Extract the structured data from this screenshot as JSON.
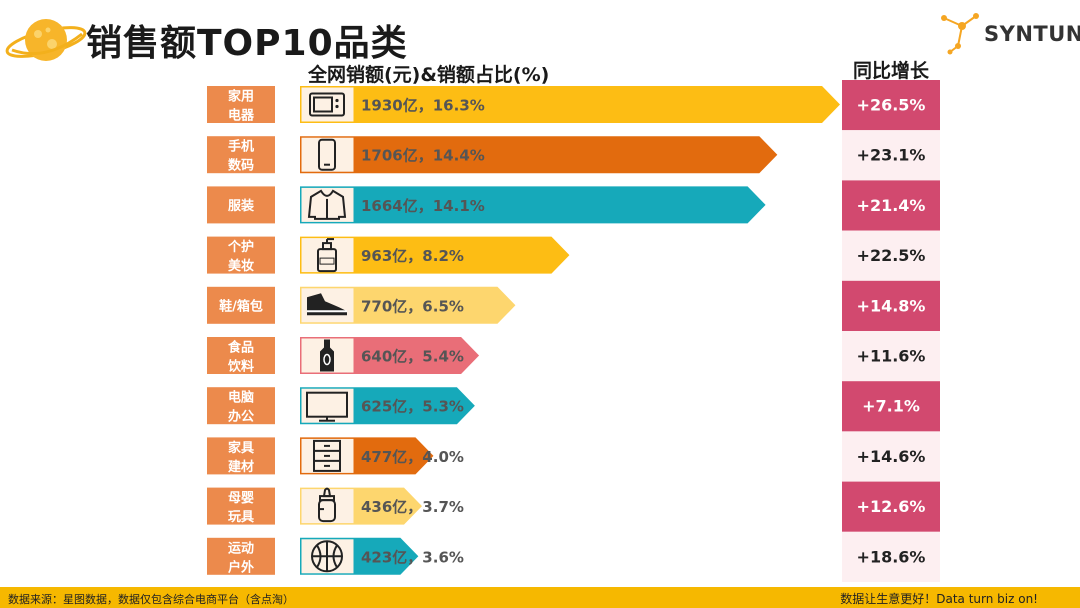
{
  "header": {
    "title": "销售额TOP10品类",
    "logo_text": "SYNTUN"
  },
  "colors": {
    "yellow": "#fdbd14",
    "orange": "#e26b0e",
    "teal": "#16a9ba",
    "light_yellow": "#fdd66e",
    "pink": "#e96e78",
    "label_bg": "#ec8a4c",
    "yoy_dark": "#d2496f",
    "yoy_light": "#fdeff1",
    "footer": "#f6b800"
  },
  "chart_data": {
    "type": "bar",
    "title": "全网销额(元)&销额占比(%)",
    "yoy_header": "同比增长",
    "categories": [
      [
        "家用",
        "电器"
      ],
      [
        "手机",
        "数码"
      ],
      [
        "服装"
      ],
      [
        "个护",
        "美妆"
      ],
      [
        "鞋/箱包"
      ],
      [
        "食品",
        "饮料"
      ],
      [
        "电脑",
        "办公"
      ],
      [
        "家具",
        "建材"
      ],
      [
        "母婴",
        "玩具"
      ],
      [
        "运动",
        "户外"
      ]
    ],
    "values": [
      1930,
      1706,
      1664,
      963,
      770,
      640,
      625,
      477,
      436,
      423
    ],
    "value_labels": [
      "1930亿，16.3%",
      "1706亿，14.4%",
      "1664亿，14.1%",
      "963亿，8.2%",
      "770亿，6.5%",
      "640亿，5.4%",
      "625亿，5.3%",
      "477亿，4.0%",
      "436亿，3.7%",
      "423亿，3.6%"
    ],
    "bar_colors": [
      "yellow",
      "orange",
      "teal",
      "yellow",
      "light_yellow",
      "pink",
      "teal",
      "orange",
      "light_yellow",
      "teal"
    ],
    "icons": [
      "microwave-icon",
      "phone-icon",
      "hoodie-icon",
      "lotion-bottle-icon",
      "sneaker-icon",
      "drink-bottle-icon",
      "monitor-icon",
      "cabinet-icon",
      "baby-bottle-icon",
      "basketball-icon"
    ],
    "yoy": [
      "+26.5%",
      "+23.1%",
      "+21.4%",
      "+22.5%",
      "+14.8%",
      "+11.6%",
      "+7.1%",
      "+14.6%",
      "+12.6%",
      "+18.6%"
    ],
    "xlim": [
      0,
      1930
    ]
  },
  "footer": {
    "source": "数据来源：星图数据，数据仅包含综合电商平台（含点淘）",
    "slogan": "数据让生意更好！Data turn biz on!"
  }
}
